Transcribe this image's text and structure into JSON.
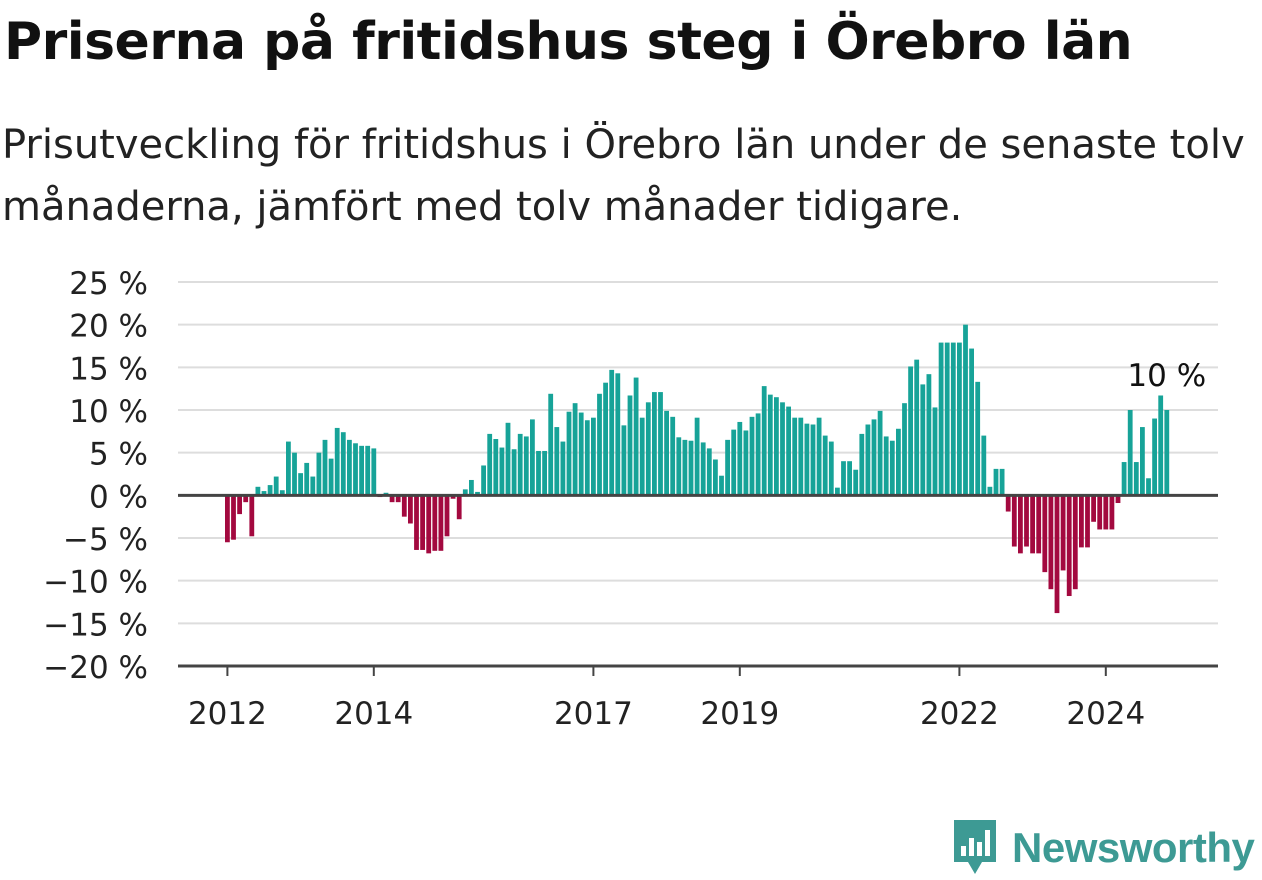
{
  "title": "Priserna på fritidshus steg i Örebro län",
  "subtitle": "Prisutveckling för fritidshus i Örebro län under de senaste tolv månaderna, jämfört med tolv månader tidigare.",
  "brand": "Newsworthy",
  "colors": {
    "positive": "#17a398",
    "negative": "#a3093f",
    "brand": "#3d9a94",
    "grid": "#dddddd",
    "axis": "#444444"
  },
  "chart_data": {
    "type": "bar",
    "x_start": "2012-01",
    "x_step": "month",
    "ylim": [
      -20,
      25
    ],
    "yticks": [
      25,
      20,
      15,
      10,
      5,
      0,
      -5,
      -10,
      -15,
      -20
    ],
    "ytick_labels": [
      "25 %",
      "20 %",
      "15 %",
      "10 %",
      "5 %",
      "0 %",
      "−5 %",
      "−10 %",
      "−15 %",
      "−20 %"
    ],
    "xticks": [
      "2012",
      "2014",
      "2017",
      "2019",
      "2022",
      "2024"
    ],
    "annotation": "10 %",
    "grid": true,
    "values": [
      -5.5,
      -5.2,
      -2.2,
      -0.8,
      -4.8,
      1.0,
      0.5,
      1.2,
      2.2,
      0.6,
      6.3,
      5.0,
      2.6,
      3.8,
      2.2,
      5.0,
      6.5,
      4.3,
      7.9,
      7.4,
      6.5,
      6.1,
      5.8,
      5.8,
      5.5,
      -0.2,
      0.3,
      -0.8,
      -0.8,
      -2.5,
      -3.3,
      -6.4,
      -6.4,
      -6.8,
      -6.5,
      -6.5,
      -4.8,
      -0.4,
      -2.8,
      0.7,
      1.8,
      0.4,
      3.5,
      7.2,
      6.6,
      5.6,
      8.5,
      5.4,
      7.2,
      6.9,
      8.9,
      5.2,
      5.2,
      11.9,
      8.0,
      6.3,
      9.8,
      10.8,
      9.7,
      8.8,
      9.1,
      11.9,
      13.2,
      14.7,
      14.3,
      8.2,
      11.7,
      13.8,
      9.1,
      10.9,
      12.1,
      12.1,
      9.9,
      9.2,
      6.8,
      6.5,
      6.4,
      9.1,
      6.2,
      5.5,
      4.2,
      2.3,
      6.5,
      7.7,
      8.6,
      7.6,
      9.2,
      9.6,
      12.8,
      11.8,
      11.5,
      10.9,
      10.4,
      9.1,
      9.1,
      8.4,
      8.3,
      9.1,
      7.0,
      6.3,
      0.9,
      4.0,
      4.0,
      3.0,
      7.2,
      8.3,
      8.9,
      9.9,
      6.9,
      6.4,
      7.8,
      10.8,
      15.1,
      15.9,
      13.0,
      14.2,
      10.3,
      17.9,
      17.9,
      17.9,
      17.9,
      20.0,
      17.2,
      13.3,
      7.0,
      1.0,
      3.1,
      3.1,
      -1.9,
      -6.0,
      -6.8,
      -6.0,
      -6.8,
      -6.8,
      -9.0,
      -11.0,
      -13.8,
      -8.8,
      -11.8,
      -11.0,
      -6.1,
      -6.1,
      -3.1,
      -4.0,
      -4.0,
      -4.0,
      -0.9,
      3.9,
      10.0,
      3.9,
      8.0,
      2.0,
      9.0,
      11.7,
      10.0
    ]
  }
}
